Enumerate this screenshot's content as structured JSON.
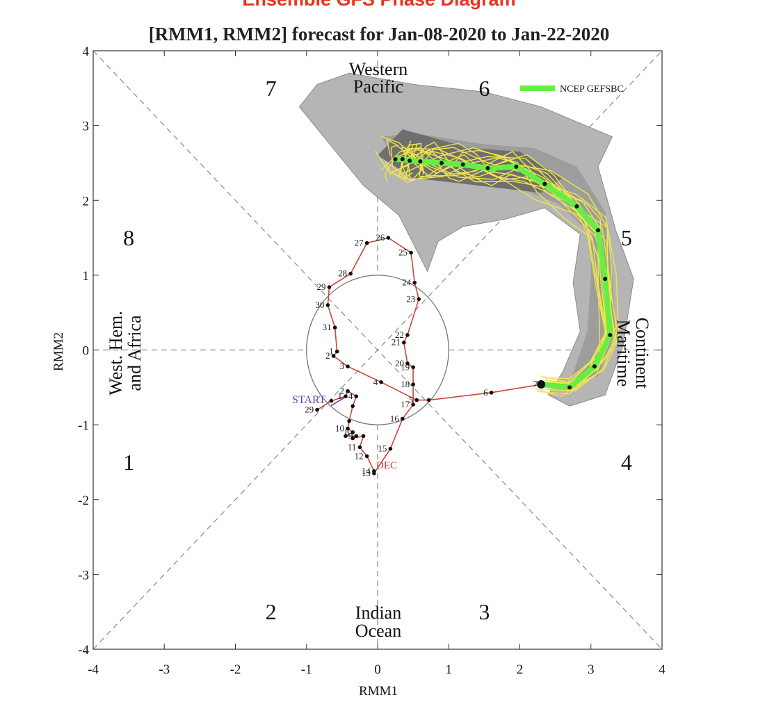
{
  "title": "Ensemble GFS Phase Diagram",
  "subtitle": "[RMM1, RMM2] forecast for Jan-08-2020 to Jan-22-2020",
  "chart_data": {
    "type": "line",
    "title": "Ensemble GFS Phase Diagram",
    "subtitle": "[RMM1, RMM2] forecast for Jan-08-2020 to Jan-22-2020",
    "xlabel": "RMM1",
    "ylabel": "RMM2",
    "xlim": [
      -4,
      4
    ],
    "ylim": [
      -4,
      4
    ],
    "x_ticks": [
      "-4",
      "-3",
      "-2",
      "-1",
      "0",
      "1",
      "2",
      "3",
      "4"
    ],
    "y_ticks": [
      "-4",
      "-3",
      "-2",
      "-1",
      "0",
      "1",
      "2",
      "3",
      "4"
    ],
    "grid": false,
    "legend": {
      "placement": "top-right",
      "label": "NCEP GEFSBC"
    },
    "phases": [
      {
        "label": "1",
        "x": -3.5,
        "y": -1.5
      },
      {
        "label": "2",
        "x": -1.5,
        "y": -3.5
      },
      {
        "label": "3",
        "x": 1.5,
        "y": -3.5
      },
      {
        "label": "4",
        "x": 3.5,
        "y": -1.5
      },
      {
        "label": "5",
        "x": 3.5,
        "y": 1.5
      },
      {
        "label": "6",
        "x": 1.5,
        "y": 3.5
      },
      {
        "label": "7",
        "x": -1.5,
        "y": 3.5
      },
      {
        "label": "8",
        "x": -3.5,
        "y": 1.5
      }
    ],
    "regions": {
      "top": [
        "Western",
        "Pacific"
      ],
      "bottom": [
        "Indian",
        "Ocean"
      ],
      "left": [
        "West. Hem.",
        "and Africa"
      ],
      "right": [
        "Maritime",
        "Continent"
      ]
    },
    "annotations": {
      "start": "START",
      "month": "DEC"
    },
    "observed": {
      "name": "",
      "color": "#c8473a",
      "points": [
        {
          "label": "29",
          "x": -0.85,
          "y": -0.8
        },
        {
          "label": "",
          "x": -0.65,
          "y": -0.68
        },
        {
          "label": "1",
          "x": -0.45,
          "y": -0.62
        },
        {
          "label": "2",
          "x": -0.42,
          "y": -0.55
        },
        {
          "label": "4",
          "x": -0.3,
          "y": -0.62
        },
        {
          "label": "",
          "x": -0.35,
          "y": -0.75
        },
        {
          "label": "",
          "x": -0.4,
          "y": -0.95
        },
        {
          "label": "10",
          "x": -0.42,
          "y": -1.05
        },
        {
          "label": "8",
          "x": -0.35,
          "y": -1.1
        },
        {
          "label": "",
          "x": -0.45,
          "y": -1.15
        },
        {
          "label": "9",
          "x": -0.3,
          "y": -1.15
        },
        {
          "label": "",
          "x": -0.35,
          "y": -1.18
        },
        {
          "label": "",
          "x": -0.2,
          "y": -1.15
        },
        {
          "label": "11",
          "x": -0.25,
          "y": -1.3
        },
        {
          "label": "12",
          "x": -0.15,
          "y": -1.42
        },
        {
          "label": "14",
          "x": -0.05,
          "y": -1.62
        },
        {
          "label": "13",
          "x": -0.05,
          "y": -1.65
        },
        {
          "label": "15",
          "x": 0.18,
          "y": -1.32
        },
        {
          "label": "16",
          "x": 0.35,
          "y": -0.92
        },
        {
          "label": "17",
          "x": 0.5,
          "y": -0.73
        },
        {
          "label": "18",
          "x": 0.5,
          "y": -0.46
        },
        {
          "label": "19",
          "x": 0.5,
          "y": -0.23
        },
        {
          "label": "20",
          "x": 0.42,
          "y": -0.18
        },
        {
          "label": "21",
          "x": 0.37,
          "y": 0.1
        },
        {
          "label": "22",
          "x": 0.42,
          "y": 0.2
        },
        {
          "label": "23",
          "x": 0.58,
          "y": 0.68
        },
        {
          "label": "24",
          "x": 0.52,
          "y": 0.9
        },
        {
          "label": "25",
          "x": 0.47,
          "y": 1.3
        },
        {
          "label": "26",
          "x": 0.15,
          "y": 1.5
        },
        {
          "label": "27",
          "x": -0.15,
          "y": 1.43
        },
        {
          "label": "28",
          "x": -0.38,
          "y": 1.02
        },
        {
          "label": "29",
          "x": -0.68,
          "y": 0.84
        },
        {
          "label": "30",
          "x": -0.7,
          "y": 0.6
        },
        {
          "label": "31",
          "x": -0.6,
          "y": 0.3
        },
        {
          "label": "1",
          "x": -0.57,
          "y": -0.02
        },
        {
          "label": "2",
          "x": -0.62,
          "y": -0.08
        },
        {
          "label": "3",
          "x": -0.42,
          "y": -0.22
        },
        {
          "label": "4",
          "x": 0.05,
          "y": -0.43
        },
        {
          "label": "5",
          "x": 0.55,
          "y": -0.67
        },
        {
          "label": "",
          "x": 0.72,
          "y": -0.67
        },
        {
          "label": "6",
          "x": 1.6,
          "y": -0.57
        },
        {
          "label": "7",
          "x": 2.3,
          "y": -0.46
        }
      ]
    },
    "forecast": {
      "name": "NCEP GEFSBC",
      "color": "#66ee44",
      "points": [
        {
          "x": 2.3,
          "y": -0.46
        },
        {
          "x": 2.7,
          "y": -0.5
        },
        {
          "x": 3.05,
          "y": -0.22
        },
        {
          "x": 3.27,
          "y": 0.2
        },
        {
          "x": 3.2,
          "y": 0.95
        },
        {
          "x": 3.1,
          "y": 1.6
        },
        {
          "x": 2.8,
          "y": 1.92
        },
        {
          "x": 2.35,
          "y": 2.22
        },
        {
          "x": 1.95,
          "y": 2.45
        },
        {
          "x": 1.55,
          "y": 2.43
        },
        {
          "x": 1.2,
          "y": 2.48
        },
        {
          "x": 0.9,
          "y": 2.5
        },
        {
          "x": 0.6,
          "y": 2.52
        },
        {
          "x": 0.45,
          "y": 2.53
        },
        {
          "x": 0.35,
          "y": 2.55
        },
        {
          "x": 0.25,
          "y": 2.55
        }
      ]
    },
    "ensemble_spread_outer": [
      [
        -1.1,
        3.25
      ],
      [
        -0.85,
        3.55
      ],
      [
        -0.4,
        3.7
      ],
      [
        0.5,
        3.55
      ],
      [
        1.5,
        3.45
      ],
      [
        2.3,
        3.25
      ],
      [
        2.8,
        3.05
      ],
      [
        3.3,
        2.85
      ],
      [
        3.1,
        2.45
      ],
      [
        3.35,
        1.6
      ],
      [
        3.6,
        0.95
      ],
      [
        3.45,
        0.05
      ],
      [
        3.2,
        -0.6
      ],
      [
        2.7,
        -0.75
      ],
      [
        2.4,
        -0.6
      ],
      [
        2.6,
        -0.3
      ],
      [
        2.85,
        0.25
      ],
      [
        2.75,
        0.9
      ],
      [
        2.85,
        1.55
      ],
      [
        2.35,
        1.9
      ],
      [
        1.8,
        1.75
      ],
      [
        1.2,
        1.65
      ],
      [
        0.85,
        1.45
      ],
      [
        0.7,
        1.05
      ],
      [
        0.3,
        1.8
      ],
      [
        -0.2,
        2.2
      ]
    ],
    "ensemble_spread_inner": [
      [
        0.05,
        2.85
      ],
      [
        0.5,
        2.9
      ],
      [
        1.5,
        2.75
      ],
      [
        2.2,
        2.7
      ],
      [
        2.8,
        2.45
      ],
      [
        3.2,
        1.85
      ],
      [
        3.3,
        1.0
      ],
      [
        3.35,
        0.25
      ],
      [
        3.1,
        -0.35
      ],
      [
        2.7,
        -0.45
      ],
      [
        2.95,
        0.25
      ],
      [
        3.0,
        1.0
      ],
      [
        3.0,
        1.55
      ],
      [
        2.55,
        1.95
      ],
      [
        1.9,
        2.2
      ],
      [
        1.1,
        2.25
      ],
      [
        0.4,
        2.3
      ]
    ],
    "ensemble_core": [
      [
        0.0,
        2.6
      ],
      [
        0.35,
        2.95
      ],
      [
        1.3,
        2.7
      ],
      [
        2.0,
        2.65
      ],
      [
        2.6,
        2.3
      ],
      [
        2.3,
        2.1
      ],
      [
        1.4,
        2.2
      ],
      [
        0.5,
        2.3
      ]
    ]
  }
}
